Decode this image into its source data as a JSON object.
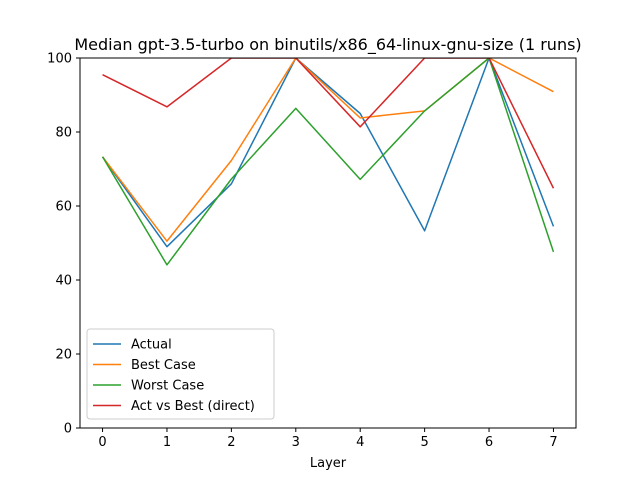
{
  "chart_data": {
    "type": "line",
    "title": "Median gpt-3.5-turbo on binutils/x86_64-linux-gnu-size (1 runs)",
    "xlabel": "Layer",
    "ylabel": "",
    "x": [
      0,
      1,
      2,
      3,
      4,
      5,
      6,
      7
    ],
    "xticks": [
      0,
      1,
      2,
      3,
      4,
      5,
      6,
      7
    ],
    "yticks": [
      0,
      20,
      40,
      60,
      80,
      100
    ],
    "xlim": [
      -0.35,
      7.35
    ],
    "ylim": [
      0,
      100
    ],
    "grid": false,
    "legend_position": "lower-left",
    "series": [
      {
        "name": "Actual",
        "color": "#1f77b4",
        "values": [
          73.3,
          49.0,
          66.0,
          100.0,
          85.0,
          53.3,
          100.0,
          54.5
        ]
      },
      {
        "name": "Best Case",
        "color": "#ff7f0e",
        "values": [
          73.3,
          50.5,
          72.3,
          100.0,
          83.8,
          85.7,
          100.0,
          90.9
        ]
      },
      {
        "name": "Worst Case",
        "color": "#2ca02c",
        "values": [
          73.3,
          44.1,
          67.3,
          86.4,
          67.2,
          85.7,
          100.0,
          47.6
        ]
      },
      {
        "name": "Act vs Best (direct)",
        "color": "#d62728",
        "values": [
          95.5,
          86.8,
          100.0,
          100.0,
          81.4,
          100.0,
          100.0,
          64.8
        ]
      }
    ]
  }
}
